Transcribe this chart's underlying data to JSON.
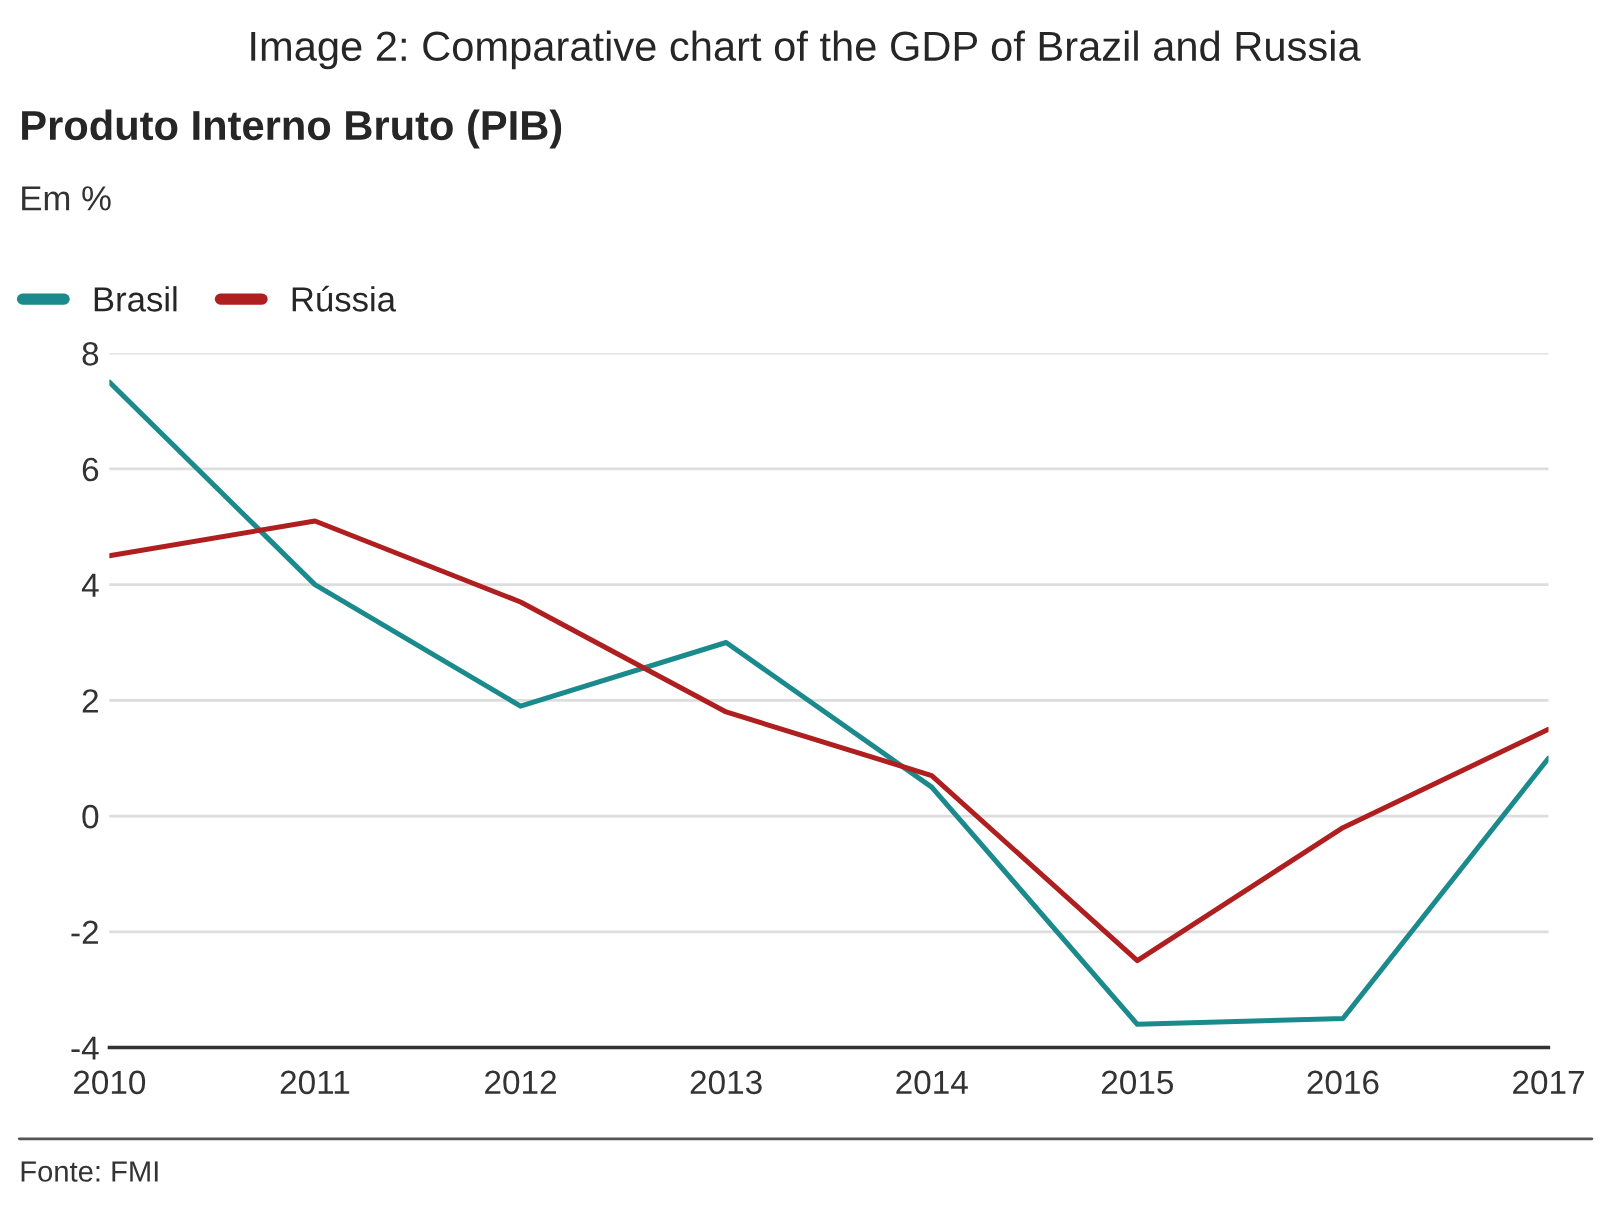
{
  "chart_data": {
    "type": "line",
    "title": "Image 2: Comparative chart of the GDP of Brazil and Russia",
    "subtitle": "Produto Interno Bruto (PIB)",
    "ylabel": "Em %",
    "x": [
      2010,
      2011,
      2012,
      2013,
      2014,
      2015,
      2016,
      2017
    ],
    "series": [
      {
        "name": "Brasil",
        "color": "#1b8a8c",
        "values": [
          7.5,
          4.0,
          1.9,
          3.0,
          0.5,
          -3.6,
          -3.5,
          1.0
        ]
      },
      {
        "name": "Rússia",
        "color": "#b01f1f",
        "values": [
          4.5,
          5.1,
          3.7,
          1.8,
          0.7,
          -2.5,
          -0.2,
          1.5
        ]
      }
    ],
    "xlim": [
      2010,
      2017
    ],
    "xticks": [
      2010,
      2011,
      2012,
      2013,
      2014,
      2015,
      2016,
      2017
    ],
    "ylim": [
      -4,
      8
    ],
    "yticks": [
      -4,
      -2,
      0,
      2,
      4,
      6,
      8
    ],
    "grid": "y",
    "legend": "top left",
    "marker": "none",
    "line_style": "solid",
    "annotations": [
      "Fonte: FMI"
    ]
  }
}
